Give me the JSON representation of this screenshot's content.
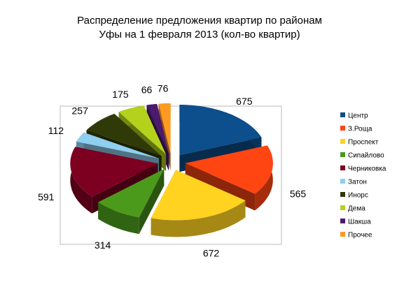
{
  "chart_data": {
    "type": "pie",
    "title": [
      "Распределение предложения  квартир по районам",
      "Уфы на 1 февраля 2013 (кол-во квартир)"
    ],
    "categories": [
      "Центр",
      "З.Роща",
      "Проспект",
      "Сипайлово",
      "Черниковка",
      "Затон",
      "Инорс",
      "Дема",
      "Шакша",
      "Прочее"
    ],
    "values": [
      675,
      565,
      672,
      314,
      591,
      112,
      257,
      175,
      66,
      76
    ],
    "colors": [
      "#0d4e8c",
      "#ff4512",
      "#ffd320",
      "#4c9a1c",
      "#7d0021",
      "#8fcff0",
      "#303a08",
      "#b4d21c",
      "#4b1a6c",
      "#ff9a20"
    ]
  }
}
